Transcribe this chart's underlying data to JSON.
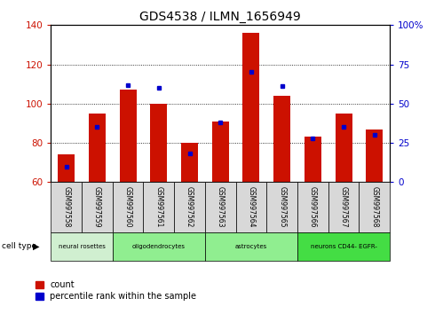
{
  "title": "GDS4538 / ILMN_1656949",
  "samples": [
    "GSM997558",
    "GSM997559",
    "GSM997560",
    "GSM997561",
    "GSM997562",
    "GSM997563",
    "GSM997564",
    "GSM997565",
    "GSM997566",
    "GSM997567",
    "GSM997568"
  ],
  "counts": [
    74,
    95,
    107,
    100,
    80,
    91,
    136,
    104,
    83,
    95,
    87
  ],
  "percentile_ranks": [
    10,
    35,
    62,
    60,
    18,
    38,
    70,
    61,
    28,
    35,
    30
  ],
  "ylim_left": [
    60,
    140
  ],
  "ylim_right": [
    0,
    100
  ],
  "bar_color": "#cc1100",
  "percentile_color": "#0000cc",
  "tick_color_left": "#cc1100",
  "tick_color_right": "#0000cc",
  "left_ticks": [
    60,
    80,
    100,
    120,
    140
  ],
  "right_ticks": [
    0,
    25,
    50,
    75,
    100
  ],
  "right_tick_labels": [
    "0",
    "25",
    "50",
    "75",
    "100%"
  ],
  "bar_width": 0.55,
  "cell_types": [
    {
      "label": "neural rosettes",
      "start": 0,
      "end": 2,
      "color": "#d0efd0"
    },
    {
      "label": "oligodendrocytes",
      "start": 2,
      "end": 5,
      "color": "#90ee90"
    },
    {
      "label": "astrocytes",
      "start": 5,
      "end": 8,
      "color": "#90ee90"
    },
    {
      "label": "neurons CD44- EGFR-",
      "start": 8,
      "end": 11,
      "color": "#44dd44"
    }
  ]
}
